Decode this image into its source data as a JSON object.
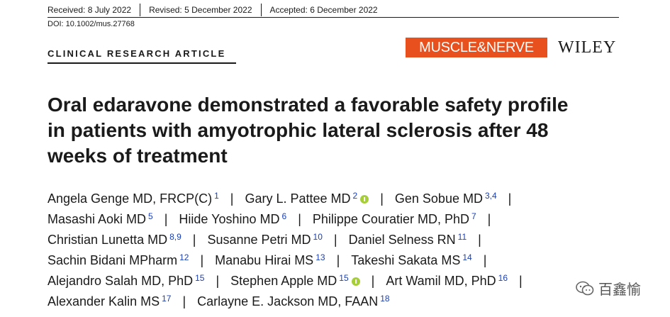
{
  "header": {
    "received": "Received: 8 July 2022",
    "revised": "Revised: 5 December 2022",
    "accepted": "Accepted: 6 December 2022",
    "doi": "DOI: 10.1002/mus.27768"
  },
  "article_type": "CLINICAL RESEARCH ARTICLE",
  "journal": "MUSCLE&NERVE",
  "publisher": "WILEY",
  "title": "Oral edaravone demonstrated a favorable safety profile in patients with amyotrophic lateral sclerosis after 48 weeks of treatment",
  "authors": [
    [
      {
        "name": "Angela Genge MD, FRCP(C)",
        "sup": "1",
        "orcid": false
      },
      {
        "name": "Gary L. Pattee MD",
        "sup": "2",
        "orcid": true
      },
      {
        "name": "Gen Sobue MD",
        "sup": "3,4",
        "orcid": false,
        "trail": true
      }
    ],
    [
      {
        "name": "Masashi Aoki MD",
        "sup": "5",
        "orcid": false
      },
      {
        "name": "Hiide Yoshino MD",
        "sup": "6",
        "orcid": false
      },
      {
        "name": "Philippe Couratier MD, PhD",
        "sup": "7",
        "orcid": false,
        "trail": true
      }
    ],
    [
      {
        "name": "Christian Lunetta MD",
        "sup": "8,9",
        "orcid": false
      },
      {
        "name": "Susanne Petri MD",
        "sup": "10",
        "orcid": false
      },
      {
        "name": "Daniel Selness RN",
        "sup": "11",
        "orcid": false,
        "trail": true
      }
    ],
    [
      {
        "name": "Sachin Bidani MPharm",
        "sup": "12",
        "orcid": false
      },
      {
        "name": "Manabu Hirai MS",
        "sup": "13",
        "orcid": false
      },
      {
        "name": "Takeshi Sakata MS",
        "sup": "14",
        "orcid": false,
        "trail": true
      }
    ],
    [
      {
        "name": "Alejandro Salah MD, PhD",
        "sup": "15",
        "orcid": false
      },
      {
        "name": "Stephen Apple MD",
        "sup": "15",
        "orcid": true
      },
      {
        "name": "Art Wamil MD, PhD",
        "sup": "16",
        "orcid": false,
        "trail": true
      }
    ],
    [
      {
        "name": "Alexander Kalin MS",
        "sup": "17",
        "orcid": false
      },
      {
        "name": "Carlayne E. Jackson MD, FAAN",
        "sup": "18",
        "orcid": false
      }
    ]
  ],
  "separator": "|",
  "watermark": "百鑫愉",
  "colors": {
    "journal_bg": "#e8501e",
    "sup": "#1a3fb5",
    "orcid": "#a6ce39"
  },
  "icons": {
    "orcid": "orcid-icon",
    "watermark": "wechat-icon"
  }
}
